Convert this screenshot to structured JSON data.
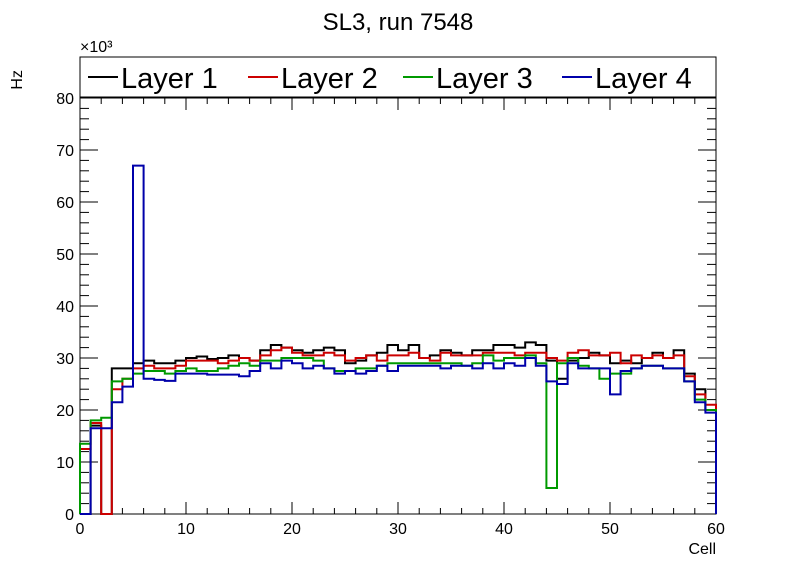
{
  "chart_data": {
    "type": "line",
    "title": "SL3, run 7548",
    "xlabel": "Cell",
    "ylabel": "Hz",
    "y_multiplier": "×10³",
    "xlim": [
      0,
      60
    ],
    "ylim": [
      0,
      80
    ],
    "x_ticks": [
      0,
      10,
      20,
      30,
      40,
      50,
      60
    ],
    "y_ticks": [
      0,
      10,
      20,
      30,
      40,
      50,
      60,
      70,
      80
    ],
    "legend_position": "top",
    "bin_width": 1,
    "x_start": 0,
    "series": [
      {
        "name": "Layer 1",
        "color": "#000000",
        "values": [
          0,
          17,
          0,
          28,
          28,
          29,
          29.5,
          29,
          29,
          29.5,
          30,
          30.3,
          29.8,
          30,
          30.5,
          30,
          29.5,
          31.5,
          32.5,
          32,
          31.5,
          31,
          31.5,
          32,
          31.5,
          29,
          29.5,
          30.5,
          31,
          32.5,
          31.5,
          32.5,
          30,
          30.5,
          31.5,
          31,
          30.5,
          31.5,
          31.5,
          32.5,
          32.5,
          32,
          33,
          32.5,
          29.5,
          26,
          29.5,
          30,
          31,
          30.5,
          29,
          29.5,
          29,
          30,
          31,
          30,
          31.5,
          27,
          24,
          20,
          0
        ]
      },
      {
        "name": "Layer 2",
        "color": "#cc0000",
        "values": [
          12.5,
          17.5,
          0,
          24,
          26,
          28,
          28.5,
          28,
          28,
          28.5,
          29.5,
          29.5,
          29.5,
          29,
          29.5,
          30,
          29.5,
          30.5,
          31.5,
          32,
          31,
          30.5,
          30.5,
          31,
          30.5,
          29.5,
          30,
          30.5,
          29.5,
          30.5,
          30.5,
          31,
          30,
          29.5,
          31,
          30.5,
          30.5,
          30.5,
          31,
          31,
          31,
          30.5,
          31,
          31,
          30,
          29.5,
          31,
          31.5,
          30.5,
          30.5,
          31,
          29,
          30.5,
          30,
          30.5,
          30,
          30.5,
          26.5,
          23,
          21,
          0
        ]
      },
      {
        "name": "Layer 3",
        "color": "#009900",
        "values": [
          13.5,
          18,
          18.5,
          25.5,
          26,
          27,
          27.5,
          27.5,
          27,
          27.5,
          28,
          27.5,
          27.5,
          28,
          28.5,
          29,
          28.5,
          29.5,
          29.5,
          30,
          30,
          30,
          29.5,
          28,
          27.5,
          27.5,
          28,
          28,
          28.5,
          29,
          29,
          29,
          29,
          29,
          29,
          29,
          28.5,
          29,
          30.5,
          29.5,
          30,
          30,
          30.5,
          29,
          5,
          29,
          30,
          28.5,
          28,
          26,
          27,
          27,
          28,
          28.5,
          28.5,
          28,
          28,
          25.5,
          22,
          20,
          0
        ]
      },
      {
        "name": "Layer 4",
        "color": "#0000aa",
        "values": [
          0,
          16.5,
          16.5,
          21.5,
          24.5,
          67,
          26,
          25.8,
          25.6,
          27,
          27,
          27,
          26.8,
          26.8,
          26.8,
          26.5,
          27.5,
          29,
          28,
          29.5,
          29,
          28,
          28.5,
          28,
          27,
          27.5,
          27,
          27.5,
          28.5,
          27.5,
          28.5,
          28.5,
          28.5,
          28.5,
          28,
          28.5,
          28.5,
          28,
          29,
          28,
          29,
          28.5,
          30,
          28.5,
          25.5,
          25,
          29,
          28,
          28,
          28,
          23,
          27.5,
          28,
          28.5,
          28.5,
          28,
          28,
          25.5,
          21.5,
          19.5,
          0
        ]
      }
    ]
  }
}
